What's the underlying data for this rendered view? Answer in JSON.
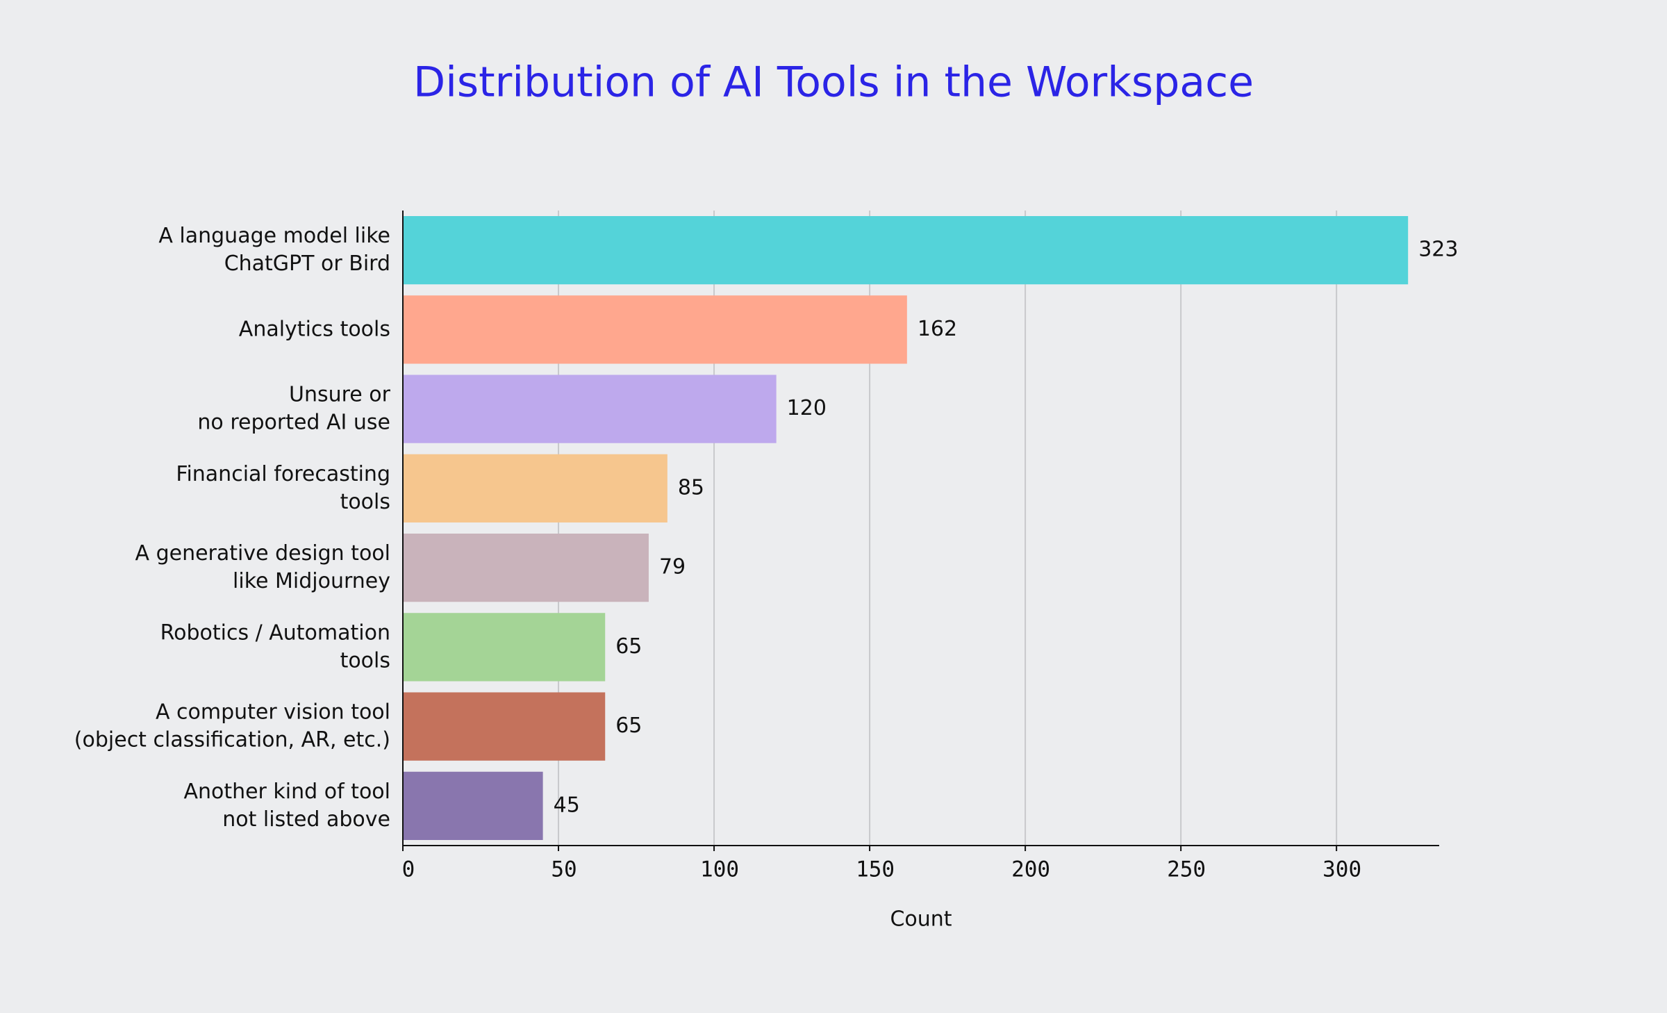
{
  "chart_data": {
    "type": "bar",
    "orientation": "horizontal",
    "title": "Distribution of AI Tools in the Workspace",
    "x_label": "Count",
    "categories": [
      [
        "A language model like",
        "ChatGPT or Bird"
      ],
      [
        "Analytics tools"
      ],
      [
        "Unsure or",
        "no reported AI use"
      ],
      [
        "Financial forecasting",
        "tools"
      ],
      [
        "A generative design tool",
        "like Midjourney"
      ],
      [
        "Robotics / Automation",
        "tools"
      ],
      [
        "A computer vision tool",
        "(object classification, AR, etc.)"
      ],
      [
        "Another kind of tool",
        "not listed above"
      ]
    ],
    "values": [
      323,
      162,
      120,
      85,
      79,
      65,
      65,
      45
    ],
    "colors": [
      "#54d3d9",
      "#ffa78e",
      "#bea9ed",
      "#f6c68e",
      "#c9b3bb",
      "#a4d496",
      "#c4725c",
      "#8976ae"
    ],
    "xlim": [
      0,
      333
    ],
    "xticks": [
      0,
      50,
      100,
      150,
      200,
      250,
      300
    ],
    "grid": true
  }
}
